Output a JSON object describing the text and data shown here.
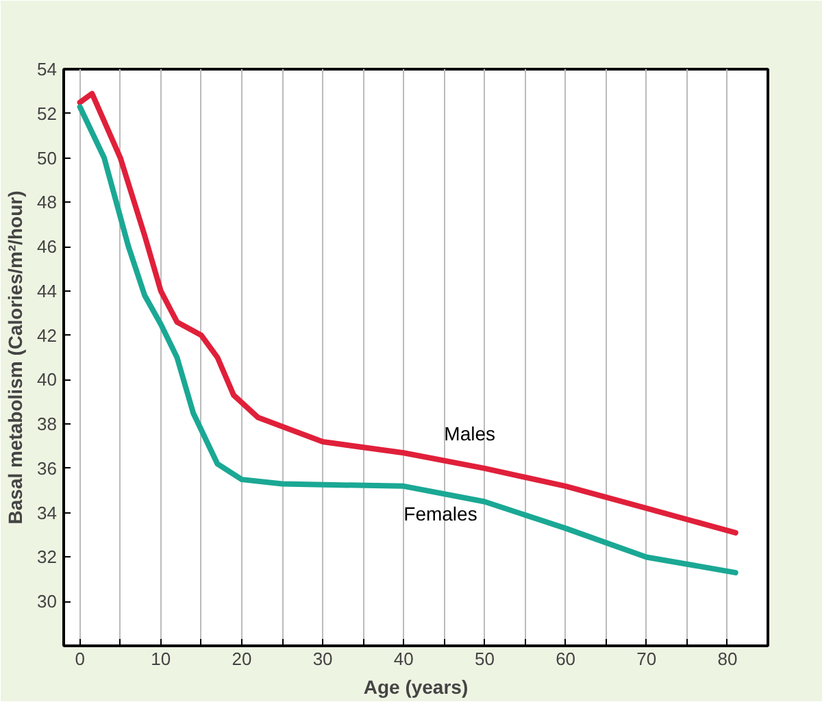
{
  "chart_data": {
    "type": "line",
    "xlabel": "Age (years)",
    "ylabel": "Basal metabolism (Calories/m²/hour)",
    "xlim": [
      -2,
      85
    ],
    "ylim": [
      28,
      54
    ],
    "xticks": [
      0,
      {
        "value": 5,
        "label": null
      },
      10,
      {
        "value": 15,
        "label": null
      },
      20,
      {
        "value": 25,
        "label": null
      },
      30,
      {
        "value": 35,
        "label": null
      },
      40,
      {
        "value": 45,
        "label": null
      },
      50,
      {
        "value": 55,
        "label": null
      },
      60,
      {
        "value": 65,
        "label": null
      },
      70,
      {
        "value": 75,
        "label": null
      },
      80
    ],
    "yticks": [
      30,
      32,
      34,
      36,
      38,
      40,
      42,
      44,
      46,
      48,
      50,
      52,
      54
    ],
    "grid": "x",
    "series": [
      {
        "name": "Males",
        "color": "#e0203a",
        "x": [
          0,
          1.5,
          5,
          8,
          10,
          12,
          15,
          17,
          19,
          22,
          30,
          40,
          50,
          60,
          70,
          81
        ],
        "values": [
          52.5,
          52.9,
          50,
          46.5,
          44,
          42.6,
          42,
          41,
          39.3,
          38.3,
          37.2,
          36.7,
          36,
          35.2,
          34.2,
          33.1
        ]
      },
      {
        "name": "Females",
        "color": "#1aa894",
        "x": [
          0,
          3,
          6,
          8,
          10,
          12,
          14,
          17,
          20,
          25,
          40,
          50,
          60,
          70,
          81
        ],
        "values": [
          52.3,
          50,
          46,
          43.8,
          42.5,
          41,
          38.5,
          36.2,
          35.5,
          35.3,
          35.2,
          34.5,
          33.3,
          32,
          31.3
        ]
      }
    ]
  }
}
